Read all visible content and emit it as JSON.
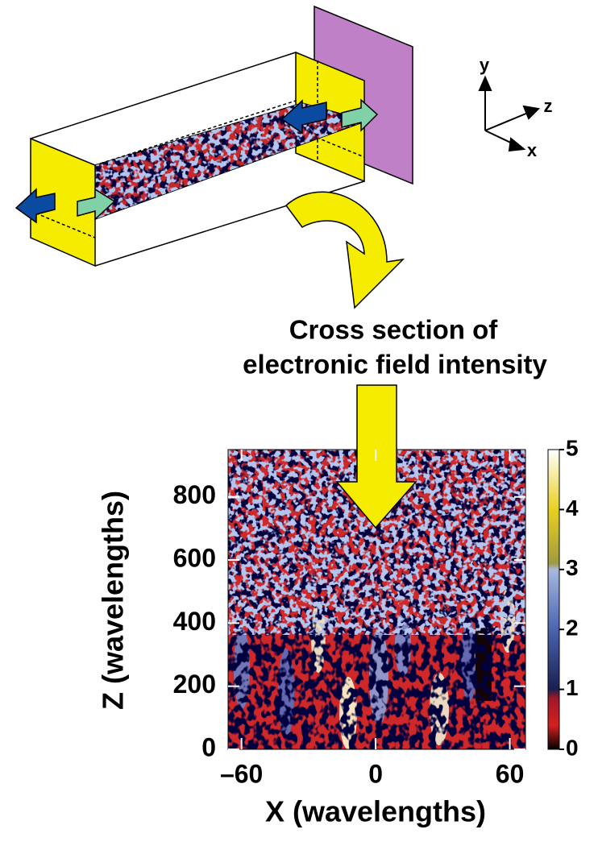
{
  "diagram": {
    "axes": {
      "y": "y",
      "z": "z",
      "x": "x"
    },
    "caption": [
      "Cross section of",
      "electronic field intensity"
    ]
  },
  "chart_data": {
    "type": "heatmap",
    "xlabel": "X (wavelengths)",
    "ylabel": "Z (wavelengths)",
    "xlim": [
      -66,
      67
    ],
    "xticks": [
      {
        "value": -60,
        "label": "–60"
      },
      0,
      60
    ],
    "ylim": [
      0,
      950
    ],
    "yticks": [
      0,
      200,
      400,
      600,
      800
    ],
    "colorbar": {
      "lim": [
        0,
        5
      ],
      "ticks": [
        0,
        1,
        2,
        3,
        4,
        5
      ]
    }
  }
}
